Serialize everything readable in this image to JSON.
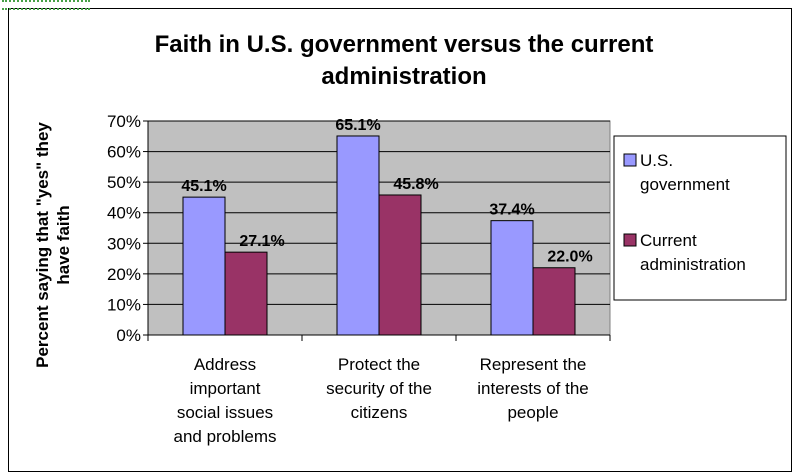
{
  "chart_data": {
    "type": "bar",
    "title_lines": [
      "Faith in U.S. government versus the current",
      "administration"
    ],
    "ylabel_lines": [
      "Percent saying that \"yes\" they",
      "have faith"
    ],
    "xlabel": "",
    "categories": [
      [
        "Address",
        "important",
        "social issues",
        "and problems"
      ],
      [
        "Protect the",
        "security of the",
        "citizens"
      ],
      [
        "Represent the",
        "interests of the",
        "people"
      ]
    ],
    "series": [
      {
        "name_lines": [
          "U.S.",
          "government"
        ],
        "color": "#9999ff",
        "values": [
          45.1,
          65.1,
          37.4
        ],
        "labels": [
          "45.1%",
          "65.1%",
          "37.4%"
        ]
      },
      {
        "name_lines": [
          "Current",
          "administration"
        ],
        "color": "#993366",
        "values": [
          27.1,
          45.8,
          22.0
        ],
        "labels": [
          "27.1%",
          "45.8%",
          "22.0%"
        ]
      }
    ],
    "ylim": [
      0,
      70
    ],
    "yticks": [
      "0%",
      "10%",
      "20%",
      "30%",
      "40%",
      "50%",
      "60%",
      "70%"
    ],
    "plot_background": "#c0c0c0",
    "grid": true,
    "legend_position": "right"
  }
}
